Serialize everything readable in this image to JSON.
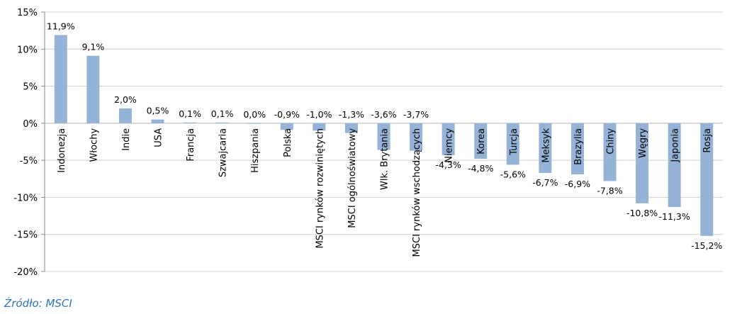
{
  "source_note": "Źródło: MSCI",
  "chart_data": {
    "type": "bar",
    "title": "",
    "xlabel": "",
    "ylabel": "",
    "ylim": [
      -20,
      15
    ],
    "yticks": [
      15,
      10,
      5,
      0,
      -5,
      -10,
      -15,
      -20
    ],
    "ytick_labels": [
      "15%",
      "10%",
      "5%",
      "0%",
      "-5%",
      "-10%",
      "-15%",
      "-20%"
    ],
    "grid": "horizontal",
    "bar_color": "#95b3d7",
    "categories": [
      "Indonezja",
      "Włochy",
      "Indie",
      "USA",
      "Francja",
      "Szwajcaria",
      "Hiszpania",
      "Polska",
      "MSCI rynków rozwiniętych",
      "MSCI ogólnoświatowy",
      "Wlk. Brytania",
      "MSCI rynków wschodzących",
      "Niemcy",
      "Korea",
      "Turcja",
      "Meksyk",
      "Brazylia",
      "Chiny",
      "Węgry",
      "Japonia",
      "Rosja"
    ],
    "values": [
      11.9,
      9.1,
      2.0,
      0.5,
      0.1,
      0.1,
      0.0,
      -0.9,
      -1.0,
      -1.3,
      -3.6,
      -3.7,
      -4.3,
      -4.8,
      -5.6,
      -6.7,
      -6.9,
      -7.8,
      -10.8,
      -11.3,
      -15.2
    ],
    "value_labels": [
      "11,9%",
      "9,1%",
      "2,0%",
      "0,5%",
      "0,1%",
      "0,1%",
      "0,0%",
      "-0,9%",
      "-1,0%",
      "-1,3%",
      "-3,6%",
      "-3,7%",
      "-4,3%",
      "-4,8%",
      "-5,6%",
      "-6,7%",
      "-6,9%",
      "-7,8%",
      "-10,8%",
      "-11,3%",
      "-15,2%"
    ]
  }
}
